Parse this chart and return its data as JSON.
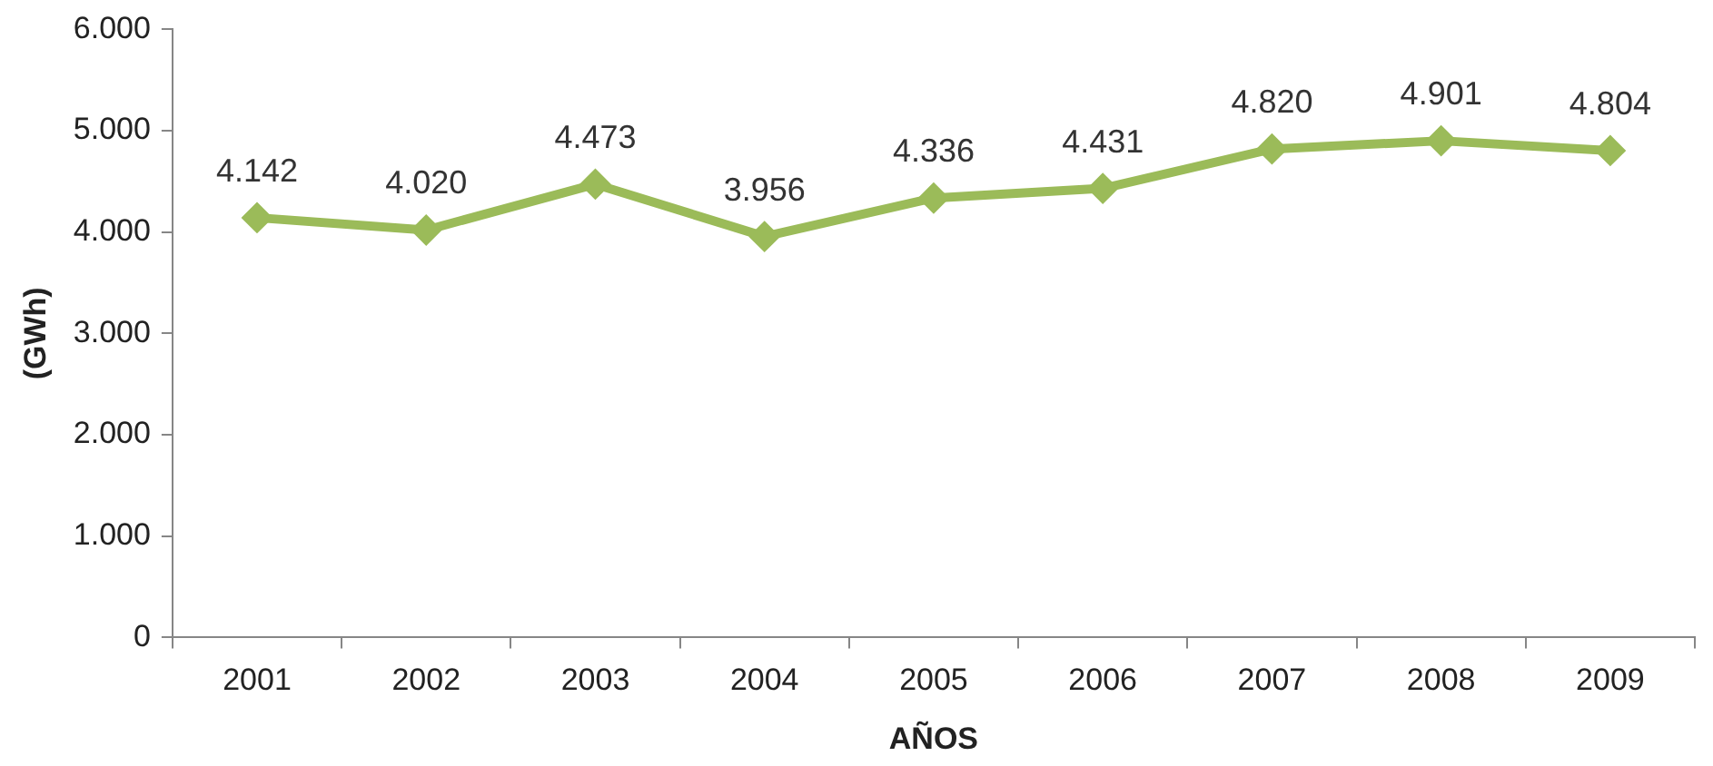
{
  "chart_data": {
    "type": "line",
    "xlabel": "AÑOS",
    "ylabel": "(GWh)",
    "categories": [
      "2001",
      "2002",
      "2003",
      "2004",
      "2005",
      "2006",
      "2007",
      "2008",
      "2009"
    ],
    "series": [
      {
        "color": "#9bbb59",
        "values": [
          4142,
          4020,
          4473,
          3956,
          4336,
          4431,
          4820,
          4901,
          4804
        ],
        "value_labels": [
          "4.142",
          "4.020",
          "4.473",
          "3.956",
          "4.336",
          "4.431",
          "4.820",
          "4.901",
          "4.804"
        ]
      }
    ],
    "ylim": [
      0,
      6000
    ],
    "yticks": [
      0,
      {
        "value": 1000,
        "label": "1.000"
      },
      {
        "value": 2000,
        "label": "2.000"
      },
      {
        "value": 3000,
        "label": "3.000"
      },
      {
        "value": 4000,
        "label": "4.000"
      },
      {
        "value": 5000,
        "label": "5.000"
      },
      {
        "value": 6000,
        "label": "6.000"
      }
    ],
    "grid": false,
    "legend": false,
    "marker": "diamond",
    "line_style": "solid"
  }
}
